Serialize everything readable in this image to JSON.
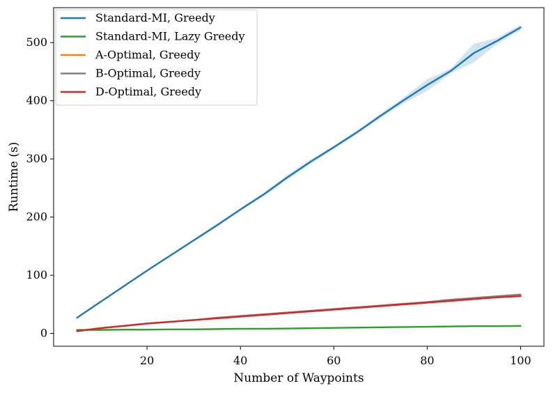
{
  "chart_data": {
    "type": "line",
    "title": "",
    "xlabel": "Number of Waypoints",
    "ylabel": "Runtime (s)",
    "xlim": [
      0,
      105
    ],
    "ylim": [
      -22,
      560
    ],
    "xticks": [
      20,
      40,
      60,
      80,
      100
    ],
    "yticks": [
      0,
      100,
      200,
      300,
      400,
      500
    ],
    "legend_position": "top-left",
    "series": [
      {
        "name": "Standard-MI, Greedy",
        "color": "#1f77b4",
        "x": [
          5,
          10,
          15,
          20,
          25,
          30,
          35,
          40,
          45,
          50,
          55,
          60,
          65,
          70,
          75,
          80,
          85,
          90,
          95,
          100
        ],
        "y": [
          27,
          54,
          81,
          108,
          134,
          160,
          186,
          213,
          239,
          268,
          295,
          320,
          346,
          374,
          401,
          427,
          451,
          482,
          503,
          526
        ],
        "band_low": [
          26,
          53,
          80,
          107,
          133,
          158,
          184,
          211,
          236,
          264,
          291,
          317,
          343,
          370,
          396,
          417,
          447,
          466,
          498,
          521
        ],
        "band_high": [
          28,
          55,
          82,
          109,
          135,
          162,
          188,
          215,
          242,
          272,
          299,
          323,
          349,
          378,
          406,
          437,
          455,
          498,
          508,
          531
        ]
      },
      {
        "name": "Standard-MI, Lazy Greedy",
        "color": "#2ca02c",
        "x": [
          5,
          10,
          15,
          20,
          25,
          30,
          35,
          40,
          45,
          50,
          55,
          60,
          65,
          70,
          75,
          80,
          85,
          90,
          95,
          100
        ],
        "y": [
          6,
          6,
          6.5,
          6.5,
          7,
          7,
          7.5,
          8,
          8,
          8.5,
          9,
          9.5,
          10,
          10.5,
          11,
          11.5,
          12,
          12.5,
          12.5,
          13
        ]
      },
      {
        "name": "A-Optimal, Greedy",
        "color": "#ff7f0e",
        "x": [
          5,
          10,
          15,
          20,
          25,
          30,
          35,
          40,
          45,
          50,
          55,
          60,
          65,
          70,
          75,
          80,
          85,
          90,
          95,
          100
        ],
        "y": [
          4,
          9,
          13,
          17,
          20,
          23,
          26,
          29,
          32,
          35,
          38,
          41,
          44,
          47,
          50,
          53,
          56,
          59,
          62,
          65
        ]
      },
      {
        "name": "B-Optimal, Greedy",
        "color": "#7f7f7f",
        "x": [
          5,
          10,
          15,
          20,
          25,
          30,
          35,
          40,
          45,
          50,
          55,
          60,
          65,
          70,
          75,
          80,
          85,
          90,
          95,
          100
        ],
        "y": [
          4,
          9,
          13,
          17,
          20,
          23,
          27,
          30,
          33,
          36,
          39,
          42,
          45,
          48,
          51,
          54,
          58,
          61,
          64,
          67
        ]
      },
      {
        "name": "D-Optimal, Greedy",
        "color": "#d62728",
        "x": [
          5,
          10,
          15,
          20,
          25,
          30,
          35,
          40,
          45,
          50,
          55,
          60,
          65,
          70,
          75,
          80,
          85,
          90,
          95,
          100
        ],
        "y": [
          4,
          9,
          13,
          17,
          20,
          23,
          26,
          29,
          32,
          35,
          38,
          41,
          44,
          47,
          50,
          53,
          56,
          59,
          62,
          64
        ]
      }
    ]
  }
}
